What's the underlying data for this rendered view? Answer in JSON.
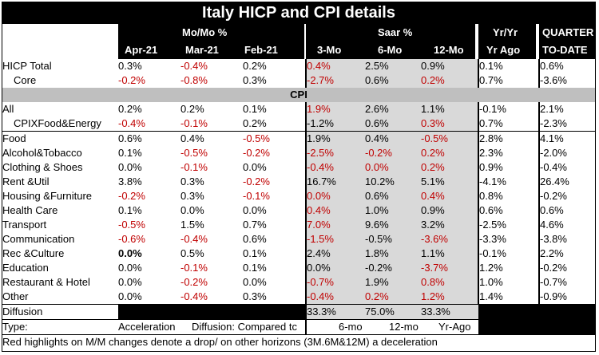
{
  "title": "Italy HICP and CPI details",
  "header": {
    "momo": "Mo/Mo %",
    "saar": "Saar %",
    "yryr": "Yr/Yr",
    "quarter": "QUARTER",
    "months": [
      "Apr-21",
      "Mar-21",
      "Feb-21"
    ],
    "horizons": [
      "3-Mo",
      "6-Mo",
      "12-Mo"
    ],
    "yr_ago": "Yr Ago",
    "to_date": "TO-DATE"
  },
  "hicp_rows": [
    {
      "label": "HICP Total",
      "values": [
        "0.3%",
        "-0.4%",
        "0.2%",
        "0.4%",
        "2.5%",
        "0.9%",
        "0.1%",
        "0.6%"
      ],
      "red": [
        false,
        true,
        false,
        true,
        false,
        false,
        false,
        false
      ]
    },
    {
      "label": "Core",
      "values": [
        "-0.2%",
        "-0.8%",
        "0.3%",
        "-2.7%",
        "0.6%",
        "0.2%",
        "0.7%",
        "-3.6%"
      ],
      "red": [
        true,
        true,
        false,
        true,
        false,
        true,
        false,
        false
      ]
    }
  ],
  "cpi_section": "CPI",
  "cpi_rows": [
    {
      "label": "All",
      "values": [
        "0.2%",
        "0.2%",
        "0.1%",
        "1.9%",
        "2.6%",
        "1.1%",
        "-0.1%",
        "2.1%"
      ],
      "red": [
        false,
        false,
        false,
        true,
        false,
        false,
        false,
        false
      ]
    },
    {
      "label": "CPIXFood&Energy",
      "values": [
        "-0.4%",
        "-0.1%",
        "0.2%",
        "-1.2%",
        "0.6%",
        "0.3%",
        "0.7%",
        "-2.3%"
      ],
      "red": [
        true,
        true,
        false,
        false,
        false,
        true,
        false,
        false
      ]
    },
    {
      "label": "Food",
      "values": [
        "0.6%",
        "0.4%",
        "-0.5%",
        "1.9%",
        "0.4%",
        "-0.5%",
        "2.8%",
        "4.1%"
      ],
      "red": [
        false,
        false,
        true,
        false,
        false,
        true,
        false,
        false
      ]
    },
    {
      "label": "Alcohol&Tobacco",
      "values": [
        "0.1%",
        "-0.5%",
        "-0.2%",
        "-2.5%",
        "-0.2%",
        "0.2%",
        "2.3%",
        "-2.0%"
      ],
      "red": [
        false,
        true,
        true,
        true,
        true,
        true,
        false,
        false
      ]
    },
    {
      "label": "Clothing & Shoes",
      "values": [
        "0.0%",
        "-0.1%",
        "0.0%",
        "-0.4%",
        "0.0%",
        "0.2%",
        "0.9%",
        "-0.4%"
      ],
      "red": [
        false,
        true,
        false,
        true,
        true,
        true,
        false,
        false
      ]
    },
    {
      "label": "Rent &Util",
      "values": [
        "3.8%",
        "0.3%",
        "-0.2%",
        "16.7%",
        "10.2%",
        "5.1%",
        "-4.1%",
        "26.4%"
      ],
      "red": [
        false,
        false,
        true,
        false,
        false,
        false,
        false,
        false
      ]
    },
    {
      "label": "Housing &Furniture",
      "values": [
        "-0.2%",
        "0.3%",
        "-0.1%",
        "0.0%",
        "0.6%",
        "0.4%",
        "0.8%",
        "-0.2%"
      ],
      "red": [
        true,
        false,
        true,
        true,
        false,
        true,
        false,
        false
      ]
    },
    {
      "label": "Health Care",
      "values": [
        "0.1%",
        "0.0%",
        "0.0%",
        "0.4%",
        "1.0%",
        "0.9%",
        "0.6%",
        "0.6%"
      ],
      "red": [
        false,
        false,
        false,
        true,
        false,
        false,
        false,
        false
      ]
    },
    {
      "label": "Transport",
      "values": [
        "-0.5%",
        "1.5%",
        "0.7%",
        "7.0%",
        "9.6%",
        "3.2%",
        "-2.5%",
        "4.6%"
      ],
      "red": [
        true,
        false,
        false,
        true,
        false,
        false,
        false,
        false
      ]
    },
    {
      "label": "Communication",
      "values": [
        "-0.6%",
        "-0.4%",
        "0.6%",
        "-1.5%",
        "-0.5%",
        "-3.6%",
        "-3.3%",
        "-3.8%"
      ],
      "red": [
        true,
        true,
        false,
        true,
        false,
        true,
        false,
        false
      ]
    },
    {
      "label": "Rec &Culture",
      "values": [
        "0.0%",
        "0.5%",
        "0.1%",
        "2.4%",
        "1.8%",
        "1.1%",
        "-0.1%",
        "2.2%"
      ],
      "red": [
        false,
        false,
        false,
        false,
        false,
        false,
        false,
        false
      ],
      "bold_first": true
    },
    {
      "label": "Education",
      "values": [
        "0.0%",
        "-0.1%",
        "0.1%",
        "0.0%",
        "-0.2%",
        "-3.7%",
        "1.2%",
        "-0.2%"
      ],
      "red": [
        false,
        true,
        false,
        false,
        false,
        true,
        false,
        false
      ]
    },
    {
      "label": "Restaurant & Hotel",
      "values": [
        "0.0%",
        "-0.2%",
        "0.0%",
        "-0.7%",
        "1.9%",
        "0.8%",
        "1.0%",
        "-0.7%"
      ],
      "red": [
        false,
        true,
        false,
        true,
        false,
        true,
        false,
        false
      ]
    },
    {
      "label": "Other",
      "values": [
        "0.0%",
        "-0.4%",
        "0.3%",
        "-0.4%",
        "0.2%",
        "1.2%",
        "1.4%",
        "-0.9%"
      ],
      "red": [
        false,
        true,
        false,
        true,
        true,
        true,
        false,
        false
      ]
    }
  ],
  "diffusion": {
    "label": "Diffusion",
    "values": [
      "33.3%",
      "75.0%",
      "33.3%"
    ]
  },
  "type_row": {
    "label": "Type:",
    "acceleration": "Acceleration",
    "diffusion_note": "Diffusion: Compared tc",
    "horizons": [
      "6-mo",
      "12-mo",
      "Yr-Ago"
    ]
  },
  "footnote": "Red highlights on M/M changes denote a drop/ on other horizons (3M.6M&12M)  a deceleration",
  "colors": {
    "red": "#c00000",
    "shade": "#d9d9d9",
    "section": "#bfbfbf"
  }
}
